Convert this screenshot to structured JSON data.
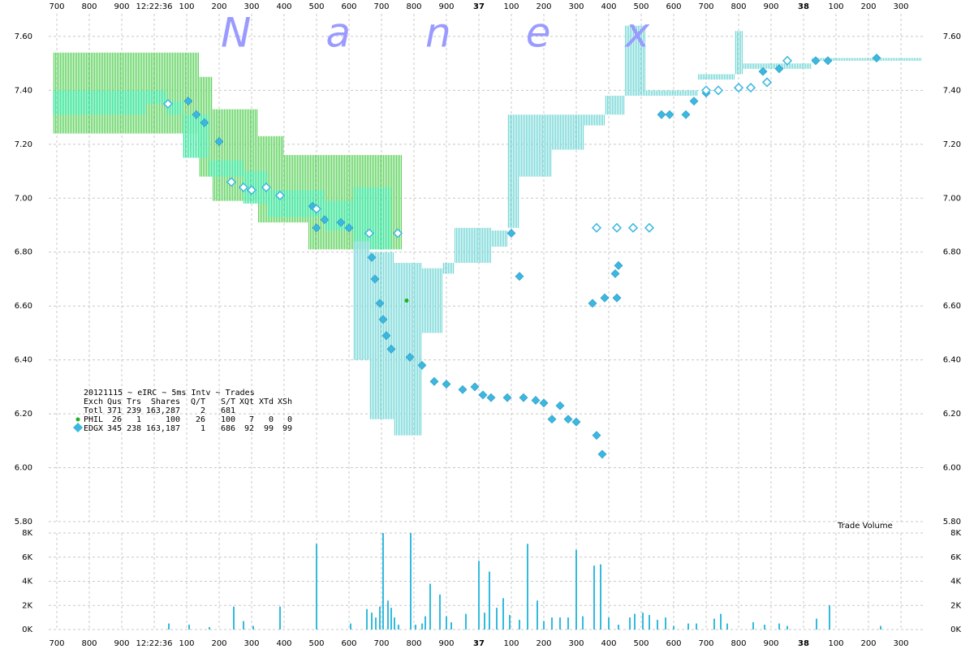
{
  "chart_data": [
    {
      "type": "scatter",
      "watermark": "Nanex",
      "xlim": [
        -325,
        2375
      ],
      "xticks": [
        {
          "value": -300,
          "label": "700"
        },
        {
          "value": -200,
          "label": "800"
        },
        {
          "value": -100,
          "label": "900"
        },
        {
          "value": 0,
          "label": "12:22:36"
        },
        100,
        200,
        300,
        400,
        500,
        600,
        700,
        800,
        900,
        {
          "value": 1000,
          "label": "37"
        },
        {
          "value": 1100,
          "label": "100"
        },
        {
          "value": 1200,
          "label": "200"
        },
        {
          "value": 1300,
          "label": "300"
        },
        {
          "value": 1400,
          "label": "400"
        },
        {
          "value": 1500,
          "label": "500"
        },
        {
          "value": 1600,
          "label": "600"
        },
        {
          "value": 1700,
          "label": "700"
        },
        {
          "value": 1800,
          "label": "800"
        },
        {
          "value": 1900,
          "label": "900"
        },
        {
          "value": 2000,
          "label": "38"
        },
        {
          "value": 2100,
          "label": "100"
        },
        {
          "value": 2200,
          "label": "200"
        },
        {
          "value": 2300,
          "label": "300"
        }
      ],
      "ylim": [
        5.8,
        7.66
      ],
      "yticks": [
        {
          "value": 5.8,
          "label": "5.80"
        },
        {
          "value": 6.0,
          "label": "6.00"
        },
        {
          "value": 6.2,
          "label": "6.20"
        },
        {
          "value": 6.4,
          "label": "6.40"
        },
        {
          "value": 6.6,
          "label": "6.60"
        },
        {
          "value": 6.8,
          "label": "6.80"
        },
        {
          "value": 7.0,
          "label": "7.00"
        },
        {
          "value": 7.2,
          "label": "7.20"
        },
        {
          "value": 7.4,
          "label": "7.40"
        },
        {
          "value": 7.6,
          "label": "7.60"
        }
      ],
      "grid": true,
      "bands": [
        {
          "color": "#5fd35f",
          "x_start": [
            -312.5,
            137.5,
            180,
            320,
            400,
            475
          ],
          "x_end": [
            137.5,
            180,
            320,
            400,
            475,
            762.5
          ],
          "low": [
            7.24,
            7.08,
            6.99,
            6.91,
            6.91,
            6.81
          ],
          "high": [
            7.54,
            7.45,
            7.33,
            7.23,
            7.16,
            7.16
          ]
        },
        {
          "color": "#33e69c",
          "x_start": [
            -312.5,
            -25,
            37.5,
            87.5,
            167.5,
            275,
            350,
            525,
            612.5
          ],
          "x_end": [
            -25,
            37.5,
            87.5,
            167.5,
            275,
            350,
            525,
            612.5,
            730
          ],
          "low": [
            7.31,
            7.35,
            7.31,
            7.15,
            7.08,
            6.98,
            6.93,
            6.88,
            6.81
          ],
          "high": [
            7.4,
            7.4,
            7.36,
            7.31,
            7.14,
            7.1,
            7.03,
            6.99,
            7.04
          ]
        },
        {
          "color": "#7ad8d8",
          "x_start": [
            612.5,
            662.5,
            737.5,
            825,
            887.5,
            925,
            1037.5,
            1087.5,
            1125,
            1225,
            1325,
            1387.5,
            1450,
            1512.5,
            1675,
            1787.5,
            1812.5,
            2025
          ],
          "x_end": [
            662.5,
            737.5,
            825,
            887.5,
            925,
            1037.5,
            1087.5,
            1125,
            1225,
            1325,
            1387.5,
            1450,
            1512.5,
            1675,
            1787.5,
            1812.5,
            2025,
            2362.5
          ],
          "low": [
            6.4,
            6.18,
            6.12,
            6.5,
            6.72,
            6.76,
            6.82,
            6.89,
            7.08,
            7.18,
            7.27,
            7.31,
            7.38,
            7.38,
            7.44,
            7.46,
            7.48,
            7.51
          ],
          "high": [
            6.84,
            6.8,
            6.76,
            6.74,
            6.76,
            6.89,
            6.88,
            7.31,
            7.31,
            7.31,
            7.31,
            7.38,
            7.64,
            7.4,
            7.46,
            7.62,
            7.5,
            7.52
          ]
        }
      ],
      "series": [
        {
          "color": "#22b022",
          "marker": "dot",
          "x": [
            777.5
          ],
          "values": [
            6.62
          ]
        },
        {
          "color": "#3bb7e0",
          "marker": "diamond",
          "x": [
            105,
            130,
            155,
            200,
            487.5,
            500,
            525,
            575,
            600,
            670,
            680,
            695,
            705,
            715,
            730,
            787.5,
            825,
            862.5,
            900,
            950,
            987.5,
            1012.5,
            1037.5,
            1087.5,
            1137.5,
            1175,
            1200,
            1250,
            1225,
            1275,
            1300,
            1362.5,
            1380,
            1100,
            1125,
            1350,
            1387.5,
            1425,
            1420,
            1430,
            1562.5,
            1587.5,
            1637.5,
            1662.5,
            1700,
            1875,
            1925,
            2037.5,
            2075,
            2225
          ],
          "values": [
            7.36,
            7.31,
            7.28,
            7.21,
            6.97,
            6.89,
            6.92,
            6.91,
            6.89,
            6.78,
            6.7,
            6.61,
            6.55,
            6.49,
            6.44,
            6.41,
            6.38,
            6.32,
            6.31,
            6.29,
            6.3,
            6.27,
            6.26,
            6.26,
            6.26,
            6.25,
            6.24,
            6.23,
            6.18,
            6.18,
            6.17,
            6.12,
            6.05,
            6.87,
            6.71,
            6.61,
            6.63,
            6.63,
            6.72,
            6.75,
            7.31,
            7.31,
            7.31,
            7.36,
            7.39,
            7.47,
            7.48,
            7.51,
            7.51,
            7.52
          ]
        },
        {
          "color": "#3bb7e0",
          "marker": "hollow",
          "x": [
            42.5,
            237.5,
            275,
            300,
            345,
            387.5,
            500,
            662.5,
            750,
            1362.5,
            1425,
            1475,
            1525,
            1700,
            1737.5,
            1800,
            1837.5,
            1887.5,
            1950
          ],
          "values": [
            7.35,
            7.06,
            7.04,
            7.03,
            7.04,
            7.01,
            6.96,
            6.87,
            6.87,
            6.89,
            6.89,
            6.89,
            6.89,
            7.4,
            7.4,
            7.41,
            7.41,
            7.43,
            7.51
          ]
        }
      ],
      "legend_table": {
        "caption": "20121115 ~ eIRC ~ 5ms Intv ~ Trades",
        "header": [
          "Exch",
          "Qus",
          "Trs",
          "Shares",
          "Q/T",
          "S/T",
          "XQt",
          "XTd",
          "XSh"
        ],
        "rows": [
          [
            "Totl",
            "371",
            "239",
            "163,287",
            "2",
            "681"
          ],
          [
            "PHIL",
            "26",
            "1",
            "100",
            "26",
            "100",
            "7",
            "0",
            "0"
          ],
          [
            "EDGX",
            "345",
            "238",
            "163,187",
            "1",
            "686",
            "92",
            "99",
            "99"
          ]
        ]
      }
    },
    {
      "type": "bar",
      "title": "Trade Volume",
      "color": "#33bbdd",
      "xlim": [
        -325,
        2375
      ],
      "xticks": [
        {
          "value": -300,
          "label": "700"
        },
        {
          "value": -200,
          "label": "800"
        },
        {
          "value": -100,
          "label": "900"
        },
        {
          "value": 0,
          "label": "12:22:36"
        },
        100,
        200,
        300,
        400,
        500,
        600,
        700,
        800,
        900,
        {
          "value": 1000,
          "label": "37"
        },
        {
          "value": 1100,
          "label": "100"
        },
        {
          "value": 1200,
          "label": "200"
        },
        {
          "value": 1300,
          "label": "300"
        },
        {
          "value": 1400,
          "label": "400"
        },
        {
          "value": 1500,
          "label": "500"
        },
        {
          "value": 1600,
          "label": "600"
        },
        {
          "value": 1700,
          "label": "700"
        },
        {
          "value": 1800,
          "label": "800"
        },
        {
          "value": 1900,
          "label": "900"
        },
        {
          "value": 2000,
          "label": "38"
        },
        {
          "value": 2100,
          "label": "100"
        },
        {
          "value": 2200,
          "label": "200"
        },
        {
          "value": 2300,
          "label": "300"
        }
      ],
      "ylim": [
        0,
        8000
      ],
      "yticks": [
        {
          "value": 0,
          "label": "0K"
        },
        {
          "value": 2000,
          "label": "2K"
        },
        {
          "value": 4000,
          "label": "4K"
        },
        {
          "value": 6000,
          "label": "6K"
        },
        {
          "value": 8000,
          "label": "8K"
        }
      ],
      "grid": true,
      "x": [
        45,
        107.5,
        170,
        245,
        275,
        305,
        387.5,
        500,
        605,
        655,
        670,
        682.5,
        695,
        705,
        720,
        730,
        740,
        752.5,
        790,
        805,
        825,
        835,
        850,
        880,
        900,
        915,
        960,
        1000,
        1017.5,
        1032.5,
        1055,
        1075,
        1095,
        1125,
        1150,
        1180,
        1200,
        1225,
        1250,
        1275,
        1300,
        1320,
        1355,
        1375,
        1400,
        1430,
        1465,
        1480,
        1505,
        1525,
        1550,
        1575,
        1600,
        1645,
        1670,
        1725,
        1745,
        1765,
        1845,
        1880,
        1925,
        1950,
        2040,
        2080,
        2237.5
      ],
      "values": [
        500,
        400,
        200,
        1900,
        700,
        300,
        1900,
        7100,
        500,
        1700,
        1400,
        1000,
        1900,
        8000,
        2400,
        1800,
        1000,
        400,
        8000,
        400,
        500,
        1100,
        3800,
        2900,
        1100,
        600,
        1300,
        5700,
        1400,
        4800,
        1800,
        2600,
        1200,
        800,
        7100,
        2400,
        700,
        1000,
        1000,
        1000,
        6600,
        1100,
        5300,
        5400,
        1000,
        400,
        1000,
        1300,
        1400,
        1200,
        800,
        1000,
        300,
        500,
        500,
        900,
        1300,
        500,
        600,
        400,
        500,
        300,
        900,
        2000,
        300
      ]
    }
  ]
}
